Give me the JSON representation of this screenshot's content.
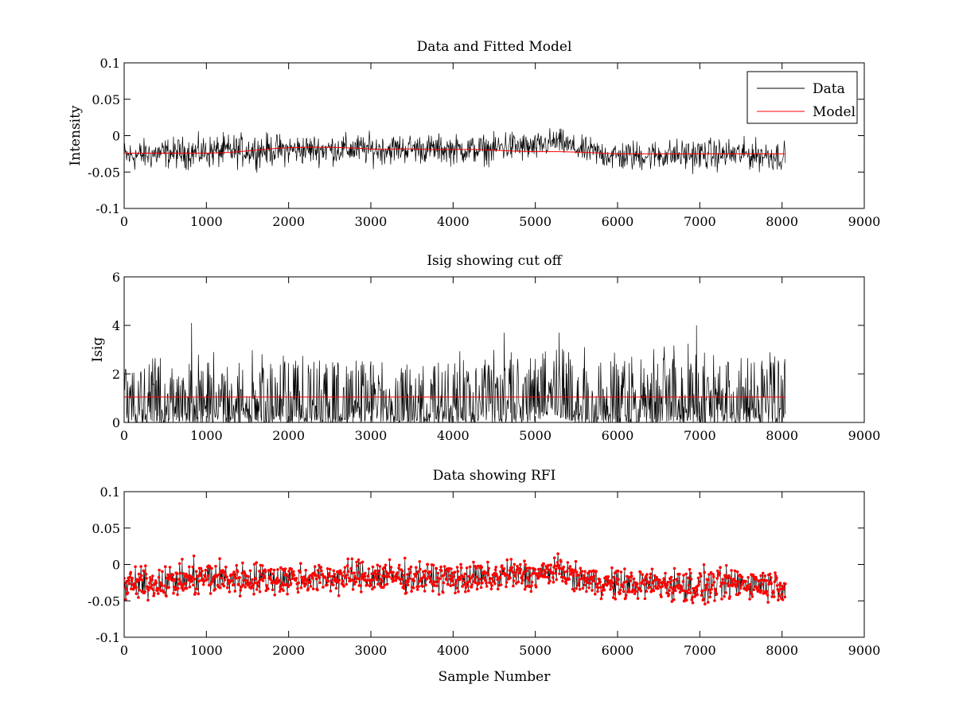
{
  "chart_data": [
    {
      "type": "line",
      "title": "Data and Fitted Model",
      "xlabel": "",
      "ylabel": "Intensity",
      "xlim": [
        0,
        9000
      ],
      "ylim": [
        -0.1,
        0.1
      ],
      "xticks": [
        "0",
        "1000",
        "2000",
        "3000",
        "4000",
        "5000",
        "6000",
        "7000",
        "8000",
        "9000"
      ],
      "yticks": [
        "-0.1",
        "-0.05",
        "0",
        "0.05",
        "0.1"
      ],
      "legend": {
        "placement": "top-right",
        "entries": [
          {
            "label": "Data",
            "color": "#000000"
          },
          {
            "label": "Model",
            "color": "#ff0000"
          }
        ]
      },
      "series": [
        {
          "name": "Data",
          "color": "#000000",
          "envelope": {
            "x": [
              0,
              500,
              1000,
              1500,
              2000,
              2500,
              3000,
              3500,
              4000,
              4500,
              4620,
              5000,
              5150,
              5300,
              5500,
              6000,
              6500,
              7000,
              7500,
              8040
            ],
            "lower": [
              -0.062,
              -0.056,
              -0.057,
              -0.055,
              -0.052,
              -0.05,
              -0.052,
              -0.048,
              -0.05,
              -0.05,
              -0.05,
              -0.046,
              -0.04,
              -0.035,
              -0.045,
              -0.062,
              -0.058,
              -0.06,
              -0.057,
              -0.061
            ],
            "upper": [
              0.005,
              0.008,
              0.012,
              0.015,
              0.013,
              0.013,
              0.014,
              0.013,
              0.012,
              0.012,
              0.022,
              0.012,
              0.02,
              0.018,
              0.008,
              0.005,
              0.005,
              0.008,
              0.006,
              0.005
            ]
          }
        },
        {
          "name": "Model",
          "color": "#ff0000",
          "x": [
            0,
            500,
            1000,
            1300,
            1600,
            1900,
            2200,
            2500,
            2800,
            3100,
            3400,
            3700,
            4000,
            4300,
            4700,
            5000,
            5300,
            5600,
            5800,
            6000,
            6500,
            7000,
            7500,
            8040
          ],
          "y": [
            -0.024,
            -0.024,
            -0.024,
            -0.023,
            -0.02,
            -0.017,
            -0.016,
            -0.016,
            -0.017,
            -0.019,
            -0.018,
            -0.019,
            -0.019,
            -0.019,
            -0.021,
            -0.022,
            -0.022,
            -0.023,
            -0.024,
            -0.025,
            -0.025,
            -0.025,
            -0.025,
            -0.025
          ]
        }
      ]
    },
    {
      "type": "line",
      "title": "Isig showing cut off",
      "xlabel": "",
      "ylabel": "Isig",
      "xlim": [
        0,
        9000
      ],
      "ylim": [
        0,
        6
      ],
      "xticks": [
        "0",
        "1000",
        "2000",
        "3000",
        "4000",
        "5000",
        "6000",
        "7000",
        "8000",
        "9000"
      ],
      "yticks": [
        "0",
        "2",
        "4",
        "6"
      ],
      "series": [
        {
          "color": "#000000",
          "envelope": {
            "x": [
              0,
              500,
              1000,
              1500,
              2000,
              2500,
              3000,
              3500,
              4000,
              4500,
              4620,
              5000,
              5150,
              5300,
              5500,
              6000,
              6500,
              7000,
              7500,
              8040
            ],
            "lower": [
              0,
              0,
              0,
              0,
              0,
              0,
              0,
              0,
              0,
              0,
              0,
              0,
              0.3,
              0.2,
              0,
              0,
              0,
              0,
              0,
              0
            ],
            "upper": [
              2.9,
              2.8,
              2.9,
              3.0,
              3.1,
              3.1,
              3.1,
              3.0,
              3.0,
              3.1,
              3.7,
              3.2,
              3.6,
              3.7,
              3.1,
              3.2,
              3.2,
              3.3,
              3.2,
              3.1
            ]
          },
          "spikes": [
            {
              "x": 820,
              "y": 4.1
            },
            {
              "x": 6960,
              "y": 4.0
            },
            {
              "x": 4620,
              "y": 3.7
            },
            {
              "x": 5290,
              "y": 3.7
            }
          ]
        },
        {
          "name": "cut off",
          "color": "#ff0000",
          "x": [
            0,
            8040
          ],
          "y": [
            1.05,
            1.05
          ]
        }
      ]
    },
    {
      "type": "scatter",
      "title": "Data showing RFI",
      "xlabel": "Sample Number",
      "ylabel": "",
      "xlim": [
        0,
        9000
      ],
      "ylim": [
        -0.1,
        0.1
      ],
      "xticks": [
        "0",
        "1000",
        "2000",
        "3000",
        "4000",
        "5000",
        "6000",
        "7000",
        "8000",
        "9000"
      ],
      "yticks": [
        "-0.1",
        "-0.05",
        "0",
        "0.05",
        "0.1"
      ],
      "series": [
        {
          "color": "#ff0000",
          "marker": "dot",
          "envelope": {
            "x": [
              0,
              500,
              1000,
              1500,
              2000,
              2500,
              3000,
              3500,
              4000,
              4500,
              4620,
              5000,
              5150,
              5300,
              5500,
              6000,
              6500,
              7000,
              7500,
              8040
            ],
            "lower": [
              -0.062,
              -0.056,
              -0.057,
              -0.055,
              -0.052,
              -0.05,
              -0.052,
              -0.048,
              -0.05,
              -0.05,
              -0.05,
              -0.046,
              -0.04,
              -0.035,
              -0.045,
              -0.062,
              -0.058,
              -0.07,
              -0.057,
              -0.061
            ],
            "upper": [
              0.005,
              0.008,
              0.02,
              0.015,
              0.013,
              0.013,
              0.02,
              0.013,
              0.012,
              0.012,
              0.022,
              0.015,
              0.02,
              0.02,
              0.008,
              0.005,
              0.005,
              0.008,
              0.006,
              0.005
            ]
          }
        }
      ]
    }
  ]
}
